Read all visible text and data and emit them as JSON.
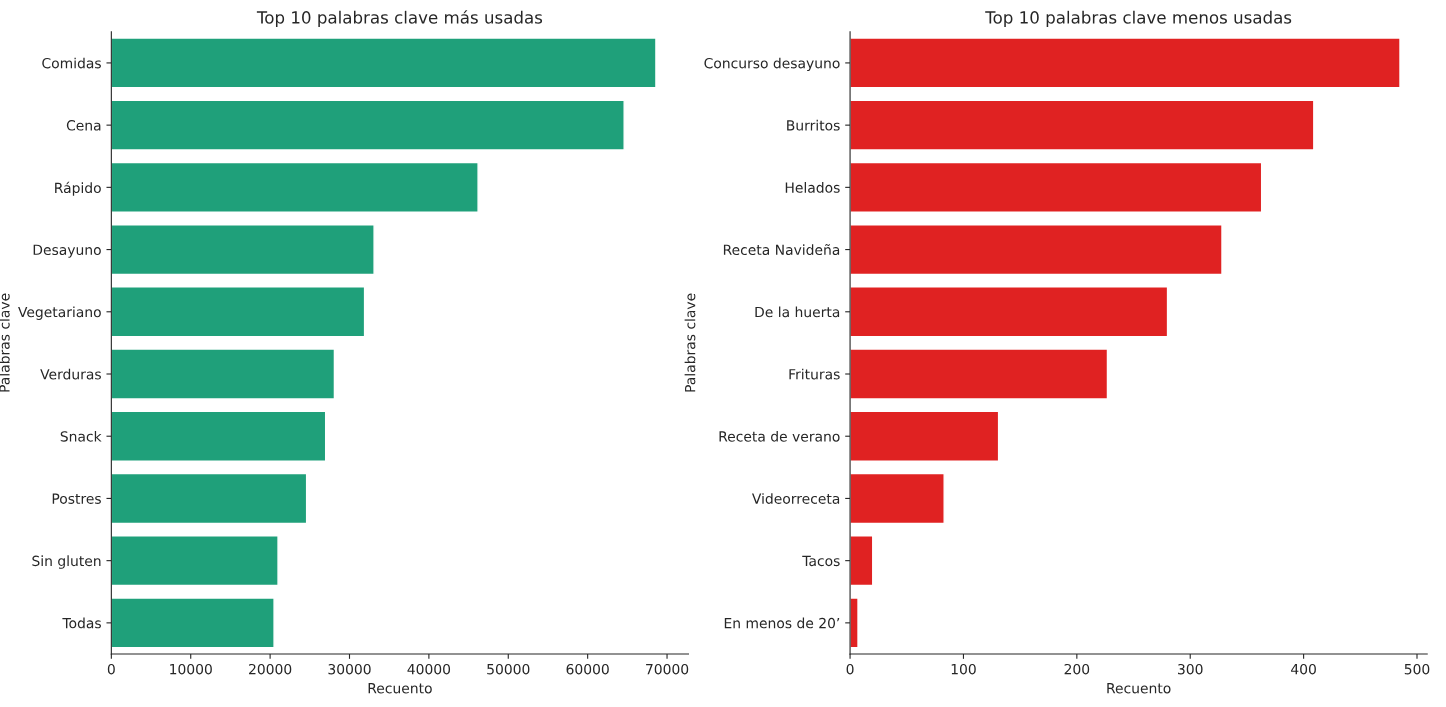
{
  "chart_data": [
    {
      "type": "bar",
      "orientation": "horizontal",
      "title": "Top 10 palabras clave más usadas",
      "xlabel": "Recuento",
      "ylabel": "Palabras clave",
      "categories": [
        "Comidas",
        "Cena",
        "Rápido",
        "Desayuno",
        "Vegetariano",
        "Verduras",
        "Snack",
        "Postres",
        "Sin gluten",
        "Todas"
      ],
      "values": [
        68600,
        64600,
        46200,
        33100,
        31900,
        28100,
        27000,
        24600,
        21000,
        20500
      ],
      "color": "#1fa07a",
      "xlim": [
        0,
        72700
      ],
      "xticks": [
        0,
        10000,
        20000,
        30000,
        40000,
        50000,
        60000,
        70000
      ],
      "grid": false,
      "legend": false
    },
    {
      "type": "bar",
      "orientation": "horizontal",
      "title": "Top 10 palabras clave menos usadas",
      "xlabel": "Recuento",
      "ylabel": "Palabras clave",
      "categories": [
        "Concurso desayuno",
        "Burritos",
        "Helados",
        "Receta Navideña",
        "De la huerta",
        "Frituras",
        "Receta de verano",
        "Videorreceta",
        "Tacos",
        "En menos de 20’"
      ],
      "values": [
        485,
        409,
        363,
        328,
        280,
        227,
        131,
        83,
        20,
        7
      ],
      "color": "#e02222",
      "xlim": [
        0,
        509
      ],
      "xticks": [
        0,
        100,
        200,
        300,
        400,
        500
      ],
      "grid": false,
      "legend": false
    }
  ]
}
